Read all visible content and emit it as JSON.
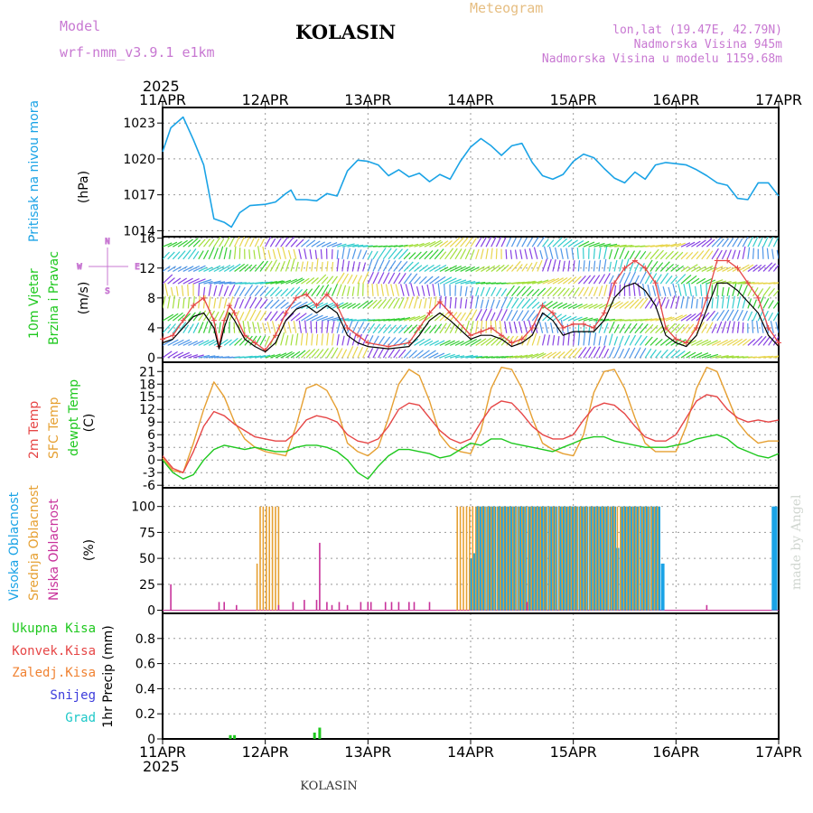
{
  "header": {
    "model_label": "Model",
    "model_name": "wrf-nmm_v3.9.1 e1km",
    "station": "KOLASIN",
    "product": "Meteogram",
    "lonlat": "lon,lat (19.47E, 42.79N)",
    "elevation": "Nadmorska Visina 945m",
    "model_elevation": "Nadmorska Visina u modelu 1159.68m",
    "footer_station": "KOLASIN",
    "credit": "made by Angel"
  },
  "colors": {
    "pressure": "#1aa3e6",
    "temp2m": "#e64646",
    "sfc": "#e6a032",
    "dewpt": "#1ec81e",
    "high_cloud": "#1aa3e6",
    "mid_cloud": "#e6a032",
    "low_cloud": "#c8329b",
    "precip_total": "#1ec81e",
    "precip_conv": "#e64646",
    "precip_frz": "#f08232",
    "snow": "#3c3cdc",
    "hail": "#1ec8c8",
    "title": "#c878d2",
    "product": "#e6be82",
    "wind_gust": "#e64646",
    "wind_mean": "#000000"
  },
  "time_axis": {
    "year": "2025",
    "ticks": [
      "11APR",
      "12APR",
      "13APR",
      "14APR",
      "15APR",
      "16APR",
      "17APR"
    ]
  },
  "panel_labels": {
    "pressure": {
      "lines": [
        "Pritisak na nivou mora"
      ],
      "unit": "(hPa)"
    },
    "wind": {
      "lines": [
        "10m Vjetar",
        "Brzina i Pravac"
      ],
      "unit": "(m/s)",
      "compass": [
        "N",
        "W",
        "E",
        "S"
      ]
    },
    "temp": {
      "lines": [
        "2m Temp",
        "SFC Temp",
        "dewpt Temp"
      ],
      "unit": "(C)"
    },
    "cloud": {
      "lines": [
        "Visoka Oblacnost",
        "Srednja Oblacnost",
        "Niska Oblacnost"
      ],
      "unit": "(%)"
    },
    "precip": {
      "lines": [
        "Ukupna Kisa",
        "Konvek.Kisa",
        "Zaledj.Kisa",
        "Snijeg",
        "Grad"
      ],
      "unit": "1hr Precip (mm)"
    }
  },
  "chart_data": [
    {
      "type": "line",
      "title": "",
      "ylabel": "Pritisak na nivou mora (hPa)",
      "ylim": [
        1014,
        1023.5
      ],
      "yticks": [
        "1014",
        "1017",
        "1020",
        "1023"
      ],
      "x_days": [
        0,
        0.08,
        0.2,
        0.3,
        0.4,
        0.5,
        0.6,
        0.67,
        0.75,
        0.85,
        1.0,
        1.1,
        1.2,
        1.25,
        1.3,
        1.4,
        1.5,
        1.6,
        1.7,
        1.8,
        1.9,
        2.0,
        2.1,
        2.2,
        2.3,
        2.4,
        2.5,
        2.6,
        2.7,
        2.8,
        2.9,
        3.0,
        3.1,
        3.2,
        3.3,
        3.4,
        3.5,
        3.6,
        3.7,
        3.8,
        3.9,
        4.0,
        4.1,
        4.2,
        4.3,
        4.4,
        4.5,
        4.6,
        4.7,
        4.8,
        4.9,
        5.0,
        5.1,
        5.2,
        5.3,
        5.4,
        5.5,
        5.6,
        5.7,
        5.8,
        5.9,
        6.0
      ],
      "series": [
        {
          "name": "",
          "values": [
            1020.6,
            1022.6,
            1023.5,
            1021.6,
            1019.5,
            1015.0,
            1014.7,
            1014.3,
            1015.5,
            1016.1,
            1016.2,
            1016.4,
            1017.1,
            1017.4,
            1016.6,
            1016.6,
            1016.5,
            1017.1,
            1016.9,
            1019.0,
            1019.9,
            1019.8,
            1019.5,
            1018.6,
            1019.1,
            1018.5,
            1018.8,
            1018.1,
            1018.7,
            1018.3,
            1019.8,
            1021.0,
            1021.7,
            1021.1,
            1020.3,
            1021.1,
            1021.3,
            1019.7,
            1018.6,
            1018.3,
            1018.7,
            1019.8,
            1020.4,
            1020.1,
            1019.2,
            1018.4,
            1018.0,
            1018.9,
            1018.3,
            1019.5,
            1019.7,
            1019.6,
            1019.5,
            1019.1,
            1018.6,
            1018.0,
            1017.8,
            1016.7,
            1016.6,
            1018.0,
            1018.0,
            1016.9
          ]
        }
      ]
    },
    {
      "type": "line",
      "title": "",
      "ylabel": "10m Vjetar Brzina i Pravac (m/s)",
      "ylim": [
        -0.5,
        16
      ],
      "yticks": [
        "0",
        "4",
        "8",
        "12",
        "16"
      ],
      "x_days": [
        0,
        0.1,
        0.2,
        0.3,
        0.4,
        0.5,
        0.55,
        0.6,
        0.65,
        0.7,
        0.8,
        0.9,
        1.0,
        1.1,
        1.2,
        1.3,
        1.4,
        1.5,
        1.6,
        1.7,
        1.8,
        1.9,
        2.0,
        2.2,
        2.4,
        2.5,
        2.6,
        2.7,
        2.8,
        3.0,
        3.1,
        3.2,
        3.3,
        3.4,
        3.5,
        3.6,
        3.7,
        3.8,
        3.9,
        4.0,
        4.1,
        4.2,
        4.3,
        4.4,
        4.5,
        4.6,
        4.7,
        4.8,
        4.9,
        5.0,
        5.1,
        5.2,
        5.3,
        5.4,
        5.5,
        5.6,
        5.7,
        5.8,
        5.9,
        6.0
      ],
      "series": [
        {
          "name": "",
          "values": [
            2.5,
            3.0,
            5.0,
            7.0,
            8.0,
            5.0,
            1.5,
            5.0,
            7.0,
            6.0,
            3.0,
            2.0,
            1.0,
            3.0,
            6.0,
            8.0,
            8.5,
            7.0,
            8.5,
            7.0,
            4.0,
            3.0,
            2.0,
            1.5,
            2.0,
            4.0,
            6.0,
            7.5,
            6.0,
            3.0,
            3.5,
            4.0,
            3.0,
            2.0,
            2.5,
            4.0,
            7.0,
            6.0,
            4.0,
            4.5,
            4.5,
            4.0,
            6.0,
            10.0,
            12.0,
            13.0,
            12.0,
            10.0,
            4.0,
            2.5,
            2.0,
            4.0,
            8.0,
            13.0,
            13.0,
            12.0,
            10.0,
            8.0,
            4.0,
            2.0
          ]
        },
        {
          "name": "",
          "values": [
            2.0,
            2.5,
            4.0,
            5.5,
            6.0,
            4.0,
            1.2,
            4.0,
            6.0,
            5.0,
            2.5,
            1.5,
            0.8,
            2.0,
            5.0,
            6.5,
            7.0,
            6.0,
            7.0,
            6.0,
            3.0,
            2.0,
            1.5,
            1.2,
            1.5,
            3.0,
            5.0,
            6.0,
            5.0,
            2.5,
            3.0,
            3.0,
            2.5,
            1.5,
            2.0,
            3.0,
            6.0,
            5.0,
            3.0,
            3.5,
            3.5,
            3.5,
            5.0,
            8.0,
            9.5,
            10.0,
            9.0,
            7.0,
            3.0,
            2.0,
            1.5,
            3.0,
            6.5,
            10.0,
            10.0,
            9.0,
            7.5,
            6.0,
            3.0,
            1.5
          ]
        }
      ]
    },
    {
      "type": "line",
      "title": "",
      "ylabel": "2m Temp / SFC Temp / dewpt Temp (C)",
      "ylim": [
        -6.5,
        22.5
      ],
      "yticks": [
        "-6",
        "-3",
        "0",
        "3",
        "6",
        "9",
        "12",
        "15",
        "18",
        "21"
      ],
      "x_days": [
        0,
        0.1,
        0.2,
        0.3,
        0.4,
        0.5,
        0.6,
        0.7,
        0.8,
        0.9,
        1.0,
        1.1,
        1.2,
        1.3,
        1.4,
        1.5,
        1.6,
        1.7,
        1.8,
        1.9,
        2.0,
        2.1,
        2.2,
        2.3,
        2.4,
        2.5,
        2.6,
        2.7,
        2.8,
        2.9,
        3.0,
        3.1,
        3.2,
        3.3,
        3.4,
        3.5,
        3.6,
        3.7,
        3.8,
        3.9,
        4.0,
        4.1,
        4.2,
        4.3,
        4.4,
        4.5,
        4.6,
        4.7,
        4.8,
        4.9,
        5.0,
        5.1,
        5.2,
        5.3,
        5.4,
        5.5,
        5.6,
        5.7,
        5.8,
        5.9,
        6.0
      ],
      "series": [
        {
          "name": "2m Temp",
          "values": [
            1.0,
            -2.0,
            -3.0,
            2.0,
            8.0,
            11.5,
            10.5,
            8.5,
            7.0,
            5.5,
            5.0,
            4.5,
            4.5,
            6.5,
            9.5,
            10.5,
            10.0,
            9.0,
            6.0,
            4.5,
            4.0,
            5.0,
            8.0,
            12.0,
            13.5,
            13.0,
            10.0,
            7.0,
            5.0,
            4.0,
            5.0,
            9.0,
            12.5,
            14.0,
            13.5,
            11.0,
            8.0,
            6.0,
            5.0,
            5.0,
            6.0,
            9.5,
            12.5,
            13.5,
            13.0,
            11.0,
            8.0,
            5.5,
            4.5,
            4.5,
            6.0,
            10.0,
            14.0,
            15.5,
            15.0,
            12.0,
            10.0,
            9.0,
            9.5,
            9.0,
            9.5
          ]
        },
        {
          "name": "SFC Temp",
          "values": [
            0.5,
            -2.5,
            -3.0,
            4.0,
            12.0,
            18.5,
            15.0,
            9.0,
            5.0,
            3.0,
            2.0,
            1.5,
            1.0,
            8.0,
            17.0,
            18.0,
            16.5,
            12.0,
            4.0,
            2.0,
            1.0,
            3.0,
            10.0,
            18.0,
            21.5,
            20.0,
            14.0,
            6.0,
            3.0,
            2.0,
            1.5,
            7.0,
            17.0,
            22.0,
            21.5,
            17.0,
            10.0,
            4.0,
            2.5,
            1.5,
            1.0,
            6.0,
            16.0,
            21.0,
            21.5,
            17.0,
            10.0,
            4.0,
            2.0,
            2.0,
            2.0,
            8.0,
            17.0,
            22.0,
            21.0,
            15.0,
            9.0,
            6.0,
            4.0,
            4.5,
            4.5
          ]
        },
        {
          "name": "dewpt Temp",
          "values": [
            0.0,
            -3.0,
            -4.5,
            -3.5,
            0.0,
            2.5,
            3.5,
            3.0,
            2.5,
            3.0,
            2.5,
            2.0,
            2.0,
            3.0,
            3.5,
            3.5,
            3.0,
            2.0,
            0.0,
            -3.0,
            -4.5,
            -1.5,
            1.0,
            2.5,
            2.5,
            2.0,
            1.5,
            0.5,
            1.0,
            2.5,
            4.0,
            3.5,
            5.0,
            5.0,
            4.0,
            3.5,
            3.0,
            2.5,
            2.0,
            3.0,
            4.0,
            5.0,
            5.5,
            5.5,
            4.5,
            4.0,
            3.5,
            3.0,
            3.0,
            3.0,
            3.5,
            4.0,
            5.0,
            5.5,
            6.0,
            5.0,
            3.0,
            2.0,
            1.0,
            0.5,
            1.5
          ]
        }
      ]
    },
    {
      "type": "bar",
      "title": "",
      "ylabel": "Visoka / Srednja / Niska Oblacnost (%)",
      "ylim": [
        0,
        100
      ],
      "yticks": [
        "0",
        "25",
        "50",
        "75",
        "100"
      ],
      "series": [
        {
          "name": "Visoka Oblacnost",
          "x_days": [
            3.0,
            3.03,
            3.07,
            3.1,
            3.13,
            3.17,
            3.2,
            3.23,
            3.27,
            3.3,
            3.33,
            3.37,
            3.4,
            3.43,
            3.47,
            3.5,
            3.53,
            3.57,
            3.6,
            3.63,
            3.67,
            3.7,
            3.73,
            3.77,
            3.8,
            3.83,
            3.87,
            3.9,
            3.93,
            3.97,
            4.0,
            4.03,
            4.07,
            4.1,
            4.13,
            4.17,
            4.2,
            4.23,
            4.27,
            4.3,
            4.33,
            4.37,
            4.4,
            4.43,
            4.47,
            4.5,
            4.53,
            4.57,
            4.6,
            4.63,
            4.67,
            4.7,
            4.73,
            4.77,
            4.8,
            4.83,
            4.87,
            5.95,
            5.97
          ],
          "values": [
            50,
            55,
            100,
            100,
            100,
            100,
            100,
            100,
            100,
            100,
            100,
            100,
            100,
            100,
            100,
            100,
            100,
            100,
            100,
            100,
            100,
            100,
            100,
            100,
            100,
            100,
            100,
            100,
            100,
            100,
            100,
            100,
            100,
            100,
            100,
            100,
            100,
            100,
            100,
            100,
            100,
            100,
            100,
            60,
            100,
            100,
            100,
            100,
            100,
            100,
            100,
            100,
            100,
            100,
            100,
            100,
            45,
            100,
            100
          ]
        },
        {
          "name": "Srednja Oblacnost",
          "x_days": [
            0.92,
            0.95,
            0.98,
            1.01,
            1.04,
            1.07,
            1.1,
            1.13,
            2.87,
            2.9,
            2.93,
            2.96,
            2.99,
            3.02,
            3.05,
            3.08,
            3.11,
            3.14,
            3.17,
            3.2,
            3.23,
            3.26,
            3.29,
            3.32,
            3.35,
            3.38,
            3.41,
            3.44,
            3.47,
            3.5,
            3.53,
            3.56,
            3.59,
            3.62,
            3.65,
            3.68,
            3.71,
            3.74,
            3.77,
            3.8,
            3.83,
            3.86,
            3.89,
            3.92,
            3.95,
            3.98,
            4.01,
            4.04,
            4.07,
            4.1,
            4.13,
            4.16,
            4.19,
            4.22,
            4.25,
            4.28,
            4.31,
            4.34,
            4.37,
            4.4,
            4.43,
            4.46,
            4.49,
            4.52,
            4.55,
            4.58,
            4.61,
            4.64,
            4.67,
            4.7,
            4.73,
            4.76,
            4.79,
            4.82
          ],
          "values": [
            45,
            100,
            100,
            100,
            100,
            100,
            100,
            100,
            100,
            100,
            100,
            100,
            100,
            100,
            100,
            100,
            100,
            100,
            100,
            100,
            100,
            100,
            100,
            100,
            100,
            100,
            100,
            100,
            100,
            100,
            100,
            100,
            100,
            100,
            100,
            100,
            100,
            100,
            100,
            100,
            100,
            100,
            100,
            100,
            100,
            100,
            100,
            100,
            100,
            100,
            100,
            100,
            100,
            100,
            100,
            100,
            100,
            100,
            100,
            100,
            100,
            100,
            100,
            100,
            100,
            100,
            100,
            100,
            100,
            100,
            100,
            100,
            100,
            100
          ]
        },
        {
          "name": "Niska Oblacnost",
          "x_days": [
            0.08,
            0.55,
            0.6,
            0.72,
            1.13,
            1.27,
            1.38,
            1.5,
            1.53,
            1.6,
            1.65,
            1.72,
            1.8,
            1.93,
            2.0,
            2.03,
            2.17,
            2.23,
            2.3,
            2.4,
            2.45,
            2.6,
            3.55,
            5.3
          ],
          "values": [
            25,
            8,
            8,
            5,
            5,
            8,
            10,
            10,
            65,
            8,
            5,
            8,
            5,
            8,
            8,
            8,
            8,
            8,
            8,
            8,
            8,
            8,
            8,
            5
          ]
        }
      ]
    },
    {
      "type": "bar",
      "title": "",
      "ylabel": "1hr Precip (mm)",
      "ylim": [
        0,
        1.0
      ],
      "yticks": [
        "0",
        "0.2",
        "0.4",
        "0.6",
        "0.8"
      ],
      "series": [
        {
          "name": "Ukupna Kisa",
          "x_days": [
            0.66,
            0.7,
            1.48,
            1.53
          ],
          "values": [
            0.03,
            0.03,
            0.05,
            0.09
          ]
        }
      ]
    }
  ]
}
